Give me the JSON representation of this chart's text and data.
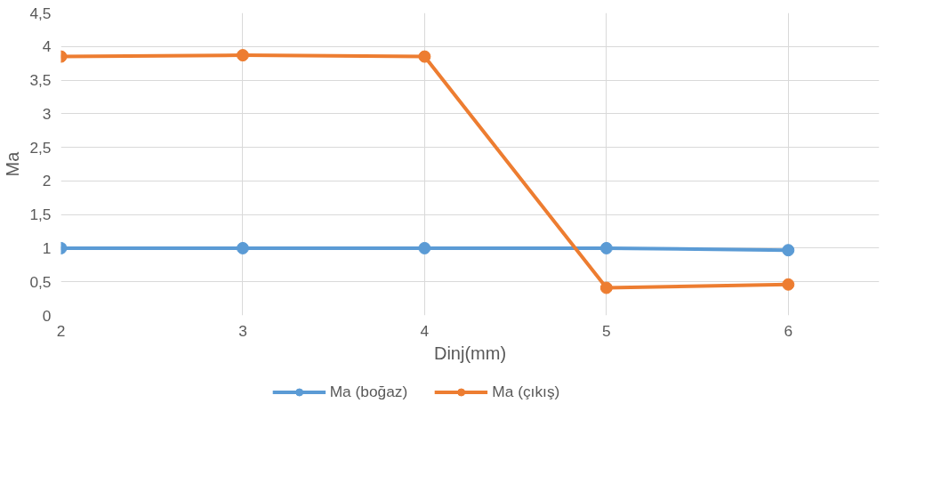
{
  "chart_data": {
    "type": "line",
    "xlabel": "Dinj(mm)",
    "ylabel": "Ma",
    "x": [
      2,
      3,
      4,
      5,
      6
    ],
    "series": [
      {
        "name": "Ma (boğaz)",
        "color": "#5b9bd5",
        "values": [
          1.0,
          1.0,
          1.0,
          1.0,
          0.97
        ]
      },
      {
        "name": "Ma (çıkış)",
        "color": "#ed7d31",
        "values": [
          3.85,
          3.87,
          3.85,
          0.41,
          0.46
        ]
      }
    ],
    "xlim": [
      2,
      6.5
    ],
    "xticks": [
      2,
      3,
      4,
      5,
      6
    ],
    "ylim": [
      0,
      4.5
    ],
    "yticks": [
      0,
      {
        "value": 0.5,
        "label": "0,5"
      },
      1,
      {
        "value": 1.5,
        "label": "1,5"
      },
      2,
      {
        "value": 2.5,
        "label": "2,5"
      },
      3,
      {
        "value": 3.5,
        "label": "3,5"
      },
      4,
      {
        "value": 4.5,
        "label": "4,5"
      }
    ],
    "grid": true,
    "legend": "bottom",
    "marker": "circle",
    "line_style": "solid"
  }
}
